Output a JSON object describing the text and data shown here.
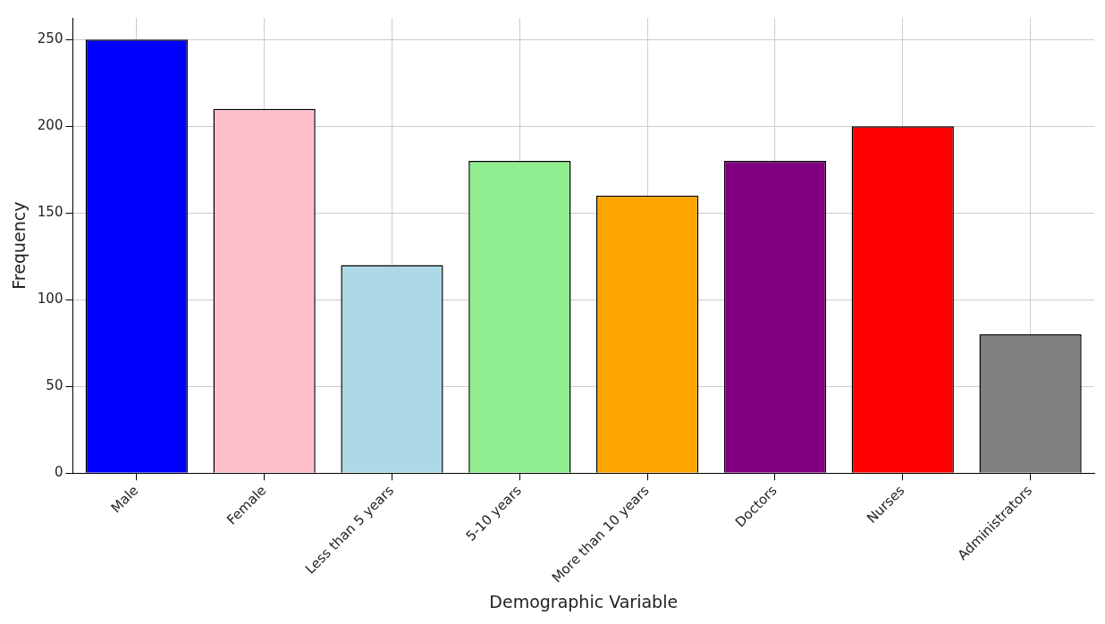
{
  "chart_data": {
    "type": "bar",
    "xlabel": "Demographic Variable",
    "ylabel": "Frequency",
    "categories": [
      "Male",
      "Female",
      "Less than 5 years",
      "5-10 years",
      "More than 10 years",
      "Doctors",
      "Nurses",
      "Administrators"
    ],
    "values": [
      250,
      210,
      120,
      180,
      160,
      180,
      200,
      80
    ],
    "colors": [
      "#0000ff",
      "#ffc0cb",
      "#add8e6",
      "#90ee90",
      "#ffa500",
      "#800080",
      "#ff0000",
      "#808080"
    ],
    "ylim": [
      0,
      262.5
    ],
    "yticks": [
      0,
      50,
      100,
      150,
      200,
      250
    ],
    "grid": true,
    "legend": false
  }
}
